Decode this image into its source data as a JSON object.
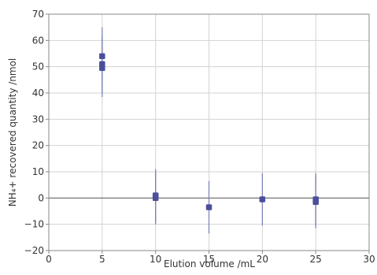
{
  "chart_data": {
    "type": "scatter",
    "title": "",
    "xlabel": "Elution volume /mL",
    "ylabel": "NH₄+ recovered quantity /nmol",
    "xlim": [
      0,
      30
    ],
    "ylim": [
      -20,
      70
    ],
    "x_ticks": [
      0,
      5,
      10,
      15,
      20,
      25,
      30
    ],
    "y_ticks": [
      -20,
      -10,
      0,
      10,
      20,
      30,
      40,
      50,
      60,
      70
    ],
    "grid": true,
    "zero_line": true,
    "colors": {
      "marker": "#4b4f9a",
      "errorbar": "#7a7fb5",
      "grid": "#d3d3d3",
      "zero_line": "#6b6b6b",
      "axis": "#888888"
    },
    "series": [
      {
        "points": [
          {
            "x": 5,
            "y": 54,
            "err": 11
          },
          {
            "x": 5,
            "y": 51,
            "err": 11
          },
          {
            "x": 5,
            "y": 49.5,
            "err": 11
          },
          {
            "x": 10,
            "y": 1,
            "err": 10
          },
          {
            "x": 10,
            "y": 0,
            "err": 10
          },
          {
            "x": 15,
            "y": -3.5,
            "err": 10
          },
          {
            "x": 20,
            "y": -0.5,
            "err": 10
          },
          {
            "x": 25,
            "y": -0.5,
            "err": 10
          },
          {
            "x": 25,
            "y": -1.5,
            "err": 10
          }
        ]
      }
    ]
  }
}
